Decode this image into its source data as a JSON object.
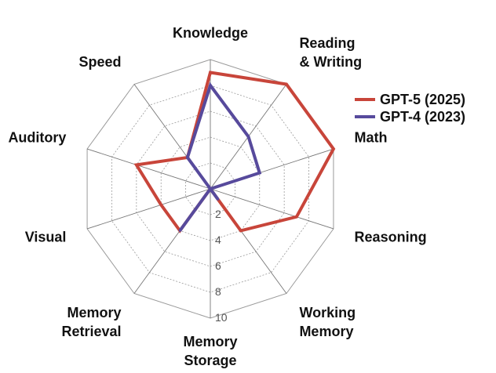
{
  "chart_data": {
    "type": "radar",
    "axes": [
      [
        "Knowledge"
      ],
      [
        "Reading",
        "& Writing"
      ],
      [
        "Math"
      ],
      [
        "Reasoning"
      ],
      [
        "Working",
        "Memory"
      ],
      [
        "Memory",
        "Storage"
      ],
      [
        "Memory",
        "Retrieval"
      ],
      [
        "Visual"
      ],
      [
        "Auditory"
      ],
      [
        "Speed"
      ]
    ],
    "ticks": [
      "2",
      "4",
      "6",
      "8",
      "10"
    ],
    "rmax": 10,
    "series": [
      {
        "name": "GPT-5 (2025)",
        "color": "#c8453a",
        "values": [
          9,
          10,
          10,
          7,
          4,
          0,
          4,
          4,
          6,
          3
        ]
      },
      {
        "name": "GPT-4 (2023)",
        "color": "#574a9c",
        "values": [
          8,
          5,
          4,
          0,
          1,
          0,
          4,
          0,
          0,
          3
        ]
      }
    ],
    "grid": true,
    "legend": "right"
  }
}
